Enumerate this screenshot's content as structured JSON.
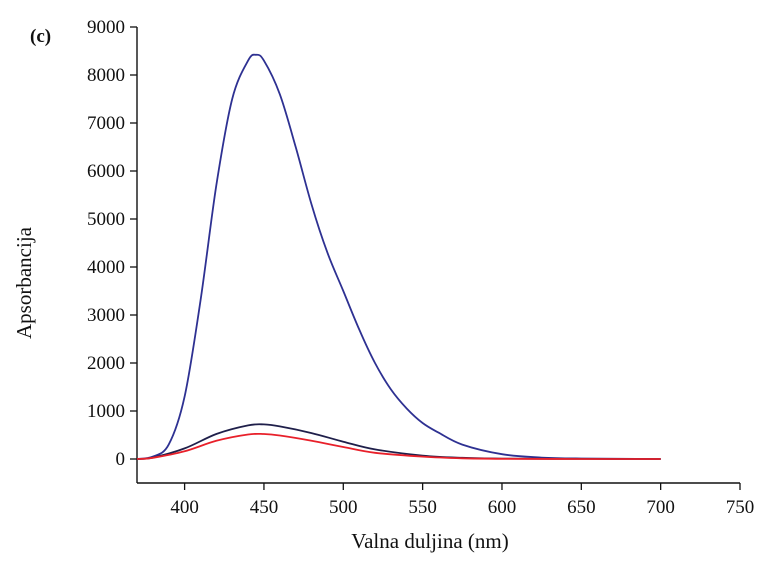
{
  "panel_label": "(c)",
  "chart_data": {
    "type": "line",
    "title": "",
    "xlabel": "Valna duljina (nm)",
    "ylabel": "Apsorbancija",
    "xlim": [
      370,
      750
    ],
    "ylim": [
      -500,
      9000
    ],
    "xticks": [
      400,
      450,
      500,
      550,
      600,
      650,
      700,
      750
    ],
    "yticks": [
      0,
      1000,
      2000,
      3000,
      4000,
      5000,
      6000,
      7000,
      8000,
      9000
    ],
    "grid": false,
    "legend": "none",
    "series": [
      {
        "color": "#2e3192",
        "x": [
          370,
          380,
          390,
          400,
          410,
          420,
          430,
          440,
          445,
          450,
          460,
          470,
          480,
          490,
          500,
          510,
          520,
          530,
          540,
          550,
          560,
          575,
          600,
          625,
          650,
          700
        ],
        "y": [
          0,
          50,
          300,
          1300,
          3300,
          5700,
          7500,
          8300,
          8420,
          8300,
          7600,
          6500,
          5300,
          4300,
          3500,
          2700,
          2000,
          1450,
          1050,
          750,
          550,
          300,
          100,
          30,
          10,
          0
        ]
      },
      {
        "color": "#1f1f4a",
        "x": [
          370,
          380,
          400,
          420,
          440,
          450,
          460,
          480,
          500,
          520,
          550,
          575,
          600,
          650,
          700
        ],
        "y": [
          0,
          30,
          220,
          520,
          700,
          720,
          680,
          540,
          360,
          200,
          70,
          25,
          8,
          2,
          0
        ]
      },
      {
        "color": "#e8202a",
        "x": [
          370,
          380,
          400,
          420,
          440,
          450,
          460,
          480,
          500,
          520,
          550,
          575,
          600,
          650,
          700
        ],
        "y": [
          0,
          25,
          160,
          380,
          510,
          520,
          490,
          380,
          250,
          130,
          50,
          15,
          5,
          1,
          0
        ]
      }
    ]
  }
}
